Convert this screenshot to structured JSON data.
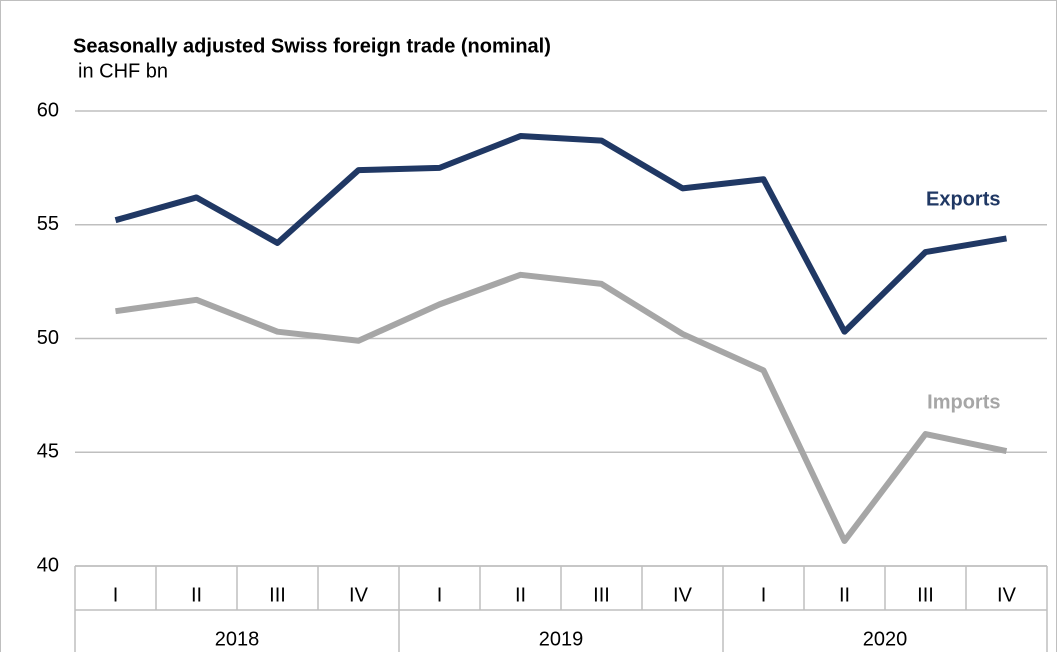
{
  "chart_data": {
    "type": "line",
    "title": "Seasonally adjusted Swiss foreign trade (nominal)",
    "subtitle": "in CHF bn",
    "categories": [
      "I",
      "II",
      "III",
      "IV",
      "I",
      "II",
      "III",
      "IV",
      "I",
      "II",
      "III",
      "IV"
    ],
    "category_groups": [
      "2018",
      "2019",
      "2020"
    ],
    "series": [
      {
        "name": "Exports",
        "color": "#203864",
        "values": [
          55.2,
          56.2,
          54.2,
          57.4,
          57.5,
          58.9,
          58.7,
          56.6,
          57.0,
          50.3,
          53.8,
          54.4
        ]
      },
      {
        "name": "Imports",
        "color": "#a6a6a6",
        "values": [
          51.2,
          51.7,
          50.3,
          49.9,
          51.5,
          52.8,
          52.4,
          50.2,
          48.6,
          41.1,
          45.8,
          45.05
        ]
      }
    ],
    "ylim": [
      40,
      60
    ],
    "yticks": [
      40,
      45,
      50,
      55,
      60
    ],
    "grid": true
  }
}
